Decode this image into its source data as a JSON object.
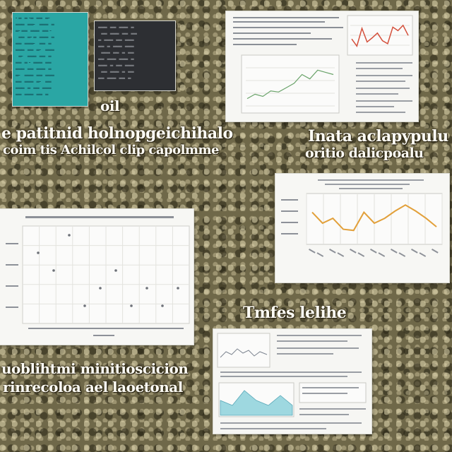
{
  "captions": {
    "top_mid": "oil",
    "left_line1": "e patitnid holnopgeichihalo",
    "left_line2": "coim tis Achilcol clip capolmme",
    "right_line1": "Inata aclapypulu",
    "right_line2": "oritio dalicpoalu",
    "mid_right": "Tmfes lelihe",
    "bottom_left_line1": "uoblihtmi minitioscicion",
    "bottom_left_line2": "rinrecoloa ael laoetonal"
  },
  "chart_data": [
    {
      "type": "line",
      "title": "",
      "series": [
        {
          "values": [
            43,
            34,
            38,
            29,
            28,
            43,
            34,
            38,
            44,
            49,
            44,
            38,
            31
          ]
        }
      ]
    },
    {
      "type": "line",
      "title": "",
      "series": [
        {
          "values": [
            60,
            48,
            78,
            55,
            62,
            70,
            57,
            52,
            80,
            74,
            83,
            66
          ]
        }
      ]
    },
    {
      "type": "scatter",
      "title": "",
      "series": [
        {
          "points": [
            [
              1,
              4
            ],
            [
              2,
              3
            ],
            [
              3,
              5
            ],
            [
              4,
              1
            ],
            [
              5,
              2
            ],
            [
              6,
              3
            ],
            [
              7,
              1
            ],
            [
              8,
              2
            ],
            [
              9,
              1
            ],
            [
              10,
              2
            ]
          ]
        }
      ]
    },
    {
      "type": "line",
      "title": "",
      "series": [
        {
          "values": [
            3,
            2,
            5,
            3,
            2,
            4,
            2
          ]
        }
      ]
    }
  ],
  "colors": {
    "teal": "#2aa6a4",
    "dark": "#2d2f33",
    "line_red": "#d4503c",
    "line_orange": "#e2a03a",
    "line_green": "#6aa36a",
    "area_teal": "#9ed8e0"
  }
}
